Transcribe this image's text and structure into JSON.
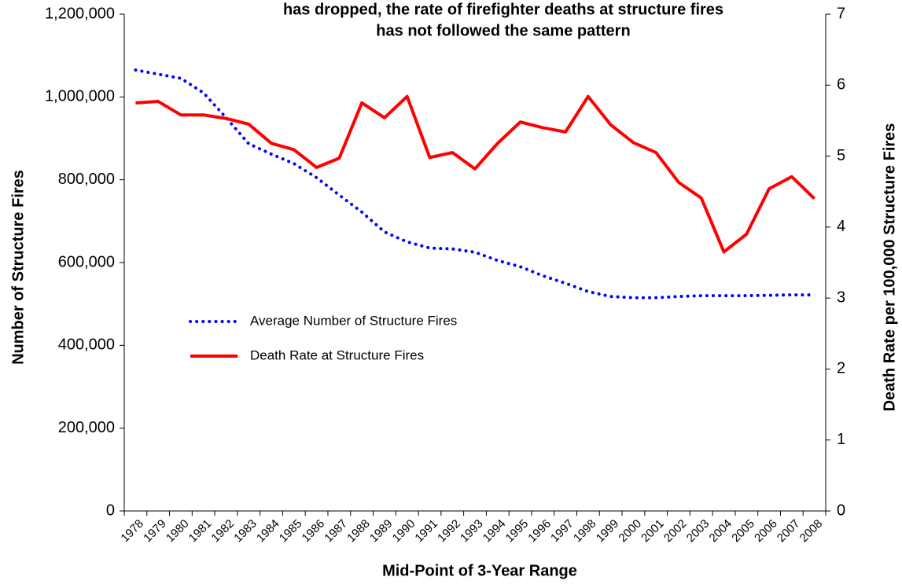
{
  "chart_data": {
    "type": "line",
    "title": [
      "has dropped, the rate of firefighter deaths at structure fires",
      "has not followed the same pattern"
    ],
    "x_label": "Mid-Point of 3-Year Range",
    "y_label": "Number of Structure Fires",
    "y2_label": "Death Rate per 100,000 Structure Fires",
    "categories": [
      "1978",
      "1979",
      "1980",
      "1981",
      "1982",
      "1983",
      "1984",
      "1985",
      "1986",
      "1987",
      "1988",
      "1989",
      "1990",
      "1991",
      "1992",
      "1993",
      "1994",
      "1995",
      "1996",
      "1997",
      "1998",
      "1999",
      "2000",
      "2001",
      "2002",
      "2003",
      "2004",
      "2005",
      "2006",
      "2007",
      "2008"
    ],
    "series": [
      {
        "name": "Average Number of Structure Fires",
        "color": "#0000ff",
        "style": "dotted",
        "values": [
          1065000,
          1055000,
          1045000,
          1010000,
          950000,
          887000,
          862000,
          839000,
          805000,
          763000,
          722000,
          674000,
          650000,
          635000,
          633000,
          625000,
          605000,
          590000,
          568000,
          550000,
          530000,
          518000,
          515000,
          515000,
          518000,
          520000,
          520000,
          520000,
          521000,
          522000,
          522000
        ]
      },
      {
        "name": "Death Rate at Structure Fires",
        "color": "#ff0000",
        "style": "solid",
        "axis": "y2",
        "values": [
          5.75,
          5.77,
          5.58,
          5.58,
          5.53,
          5.45,
          5.18,
          5.09,
          4.84,
          4.97,
          5.75,
          5.54,
          5.84,
          4.98,
          5.05,
          4.82,
          5.18,
          5.48,
          5.4,
          5.34,
          5.84,
          5.44,
          5.19,
          5.05,
          4.63,
          4.41,
          3.65,
          3.9,
          4.54,
          4.71,
          4.4
        ]
      }
    ],
    "ylim": [
      0,
      1200000
    ],
    "yticks": [
      0,
      {
        "value": 200000,
        "label": "200,000"
      },
      {
        "value": 400000,
        "label": "400,000"
      },
      {
        "value": 600000,
        "label": "600,000"
      },
      {
        "value": 800000,
        "label": "800,000"
      },
      {
        "value": 1000000,
        "label": "1,000,000"
      },
      {
        "value": 1200000,
        "label": "1,200,000"
      }
    ],
    "y2lim": [
      0,
      7
    ],
    "y2ticks": [
      0,
      1,
      2,
      3,
      4,
      5,
      6,
      7
    ],
    "grid": false,
    "legend": "center-left"
  }
}
